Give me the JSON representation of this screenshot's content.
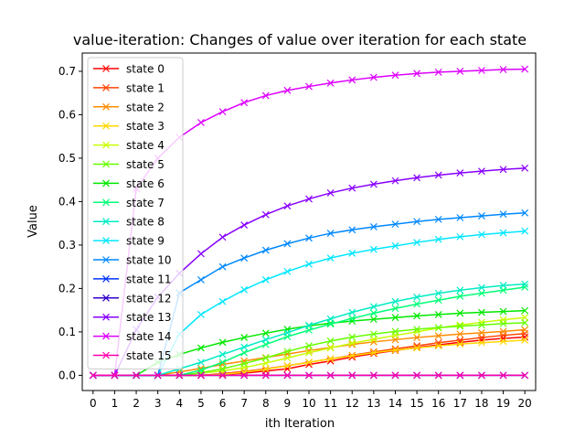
{
  "chart_data": {
    "type": "line",
    "title": "value-iteration: Changes of value over iteration for each state",
    "xlabel": "ith Iteration",
    "ylabel": "Value",
    "xlim": [
      -0.5,
      20.5
    ],
    "ylim": [
      -0.035,
      0.742
    ],
    "xticks": [
      0,
      1,
      2,
      3,
      4,
      5,
      6,
      7,
      8,
      9,
      10,
      11,
      12,
      13,
      14,
      15,
      16,
      17,
      18,
      19,
      20
    ],
    "yticks": [
      0.0,
      0.1,
      0.2,
      0.3,
      0.4,
      0.5,
      0.6,
      0.7
    ],
    "ytick_labels": [
      "0.0",
      "0.1",
      "0.2",
      "0.3",
      "0.4",
      "0.5",
      "0.6",
      "0.7"
    ],
    "grid": false,
    "legend_position": "upper-left",
    "marker": "x",
    "x": [
      0,
      1,
      2,
      3,
      4,
      5,
      6,
      7,
      8,
      9,
      10,
      11,
      12,
      13,
      14,
      15,
      16,
      17,
      18,
      19,
      20
    ],
    "series": [
      {
        "name": "state 0",
        "color": "#ff0000",
        "values": [
          0,
          0,
          0,
          0,
          0,
          0,
          0.002,
          0.005,
          0.01,
          0.015,
          0.025,
          0.033,
          0.042,
          0.05,
          0.057,
          0.064,
          0.07,
          0.076,
          0.081,
          0.085,
          0.088
        ]
      },
      {
        "name": "state 1",
        "color": "#ff4400",
        "values": [
          0,
          0,
          0,
          0,
          0,
          0,
          0.004,
          0.009,
          0.015,
          0.022,
          0.03,
          0.038,
          0.046,
          0.054,
          0.061,
          0.068,
          0.075,
          0.081,
          0.087,
          0.092,
          0.096
        ]
      },
      {
        "name": "state 2",
        "color": "#ff8c00",
        "values": [
          0,
          0,
          0,
          0,
          0.008,
          0.016,
          0.025,
          0.033,
          0.041,
          0.049,
          0.057,
          0.064,
          0.071,
          0.077,
          0.082,
          0.087,
          0.091,
          0.095,
          0.098,
          0.101,
          0.105
        ]
      },
      {
        "name": "state 3",
        "color": "#ffd800",
        "values": [
          0,
          0,
          0,
          0,
          0,
          0,
          0.002,
          0.007,
          0.014,
          0.022,
          0.03,
          0.038,
          0.045,
          0.052,
          0.058,
          0.063,
          0.068,
          0.072,
          0.075,
          0.078,
          0.081
        ]
      },
      {
        "name": "state 4",
        "color": "#c8ff00",
        "values": [
          0,
          0,
          0,
          0,
          0,
          0.005,
          0.01,
          0.018,
          0.028,
          0.04,
          0.052,
          0.063,
          0.074,
          0.083,
          0.092,
          0.1,
          0.109,
          0.116,
          0.122,
          0.128,
          0.133
        ]
      },
      {
        "name": "state 5",
        "color": "#66ff00",
        "values": [
          0,
          0,
          0,
          0,
          0,
          0.006,
          0.015,
          0.027,
          0.04,
          0.055,
          0.068,
          0.079,
          0.088,
          0.095,
          0.101,
          0.106,
          0.11,
          0.113,
          0.116,
          0.119,
          0.121
        ]
      },
      {
        "name": "state 6",
        "color": "#00e800",
        "values": [
          0,
          0,
          0,
          0.03,
          0.048,
          0.063,
          0.076,
          0.087,
          0.097,
          0.106,
          0.114,
          0.12,
          0.125,
          0.129,
          0.133,
          0.137,
          0.14,
          0.143,
          0.145,
          0.147,
          0.149
        ]
      },
      {
        "name": "state 7",
        "color": "#00ff77",
        "values": [
          0,
          0,
          0,
          0,
          0,
          0.012,
          0.03,
          0.052,
          0.071,
          0.089,
          0.104,
          0.118,
          0.131,
          0.143,
          0.154,
          0.164,
          0.173,
          0.182,
          0.189,
          0.196,
          0.203
        ]
      },
      {
        "name": "state 8",
        "color": "#00ecc4",
        "values": [
          0,
          0,
          0,
          0,
          0.015,
          0.03,
          0.048,
          0.065,
          0.082,
          0.098,
          0.115,
          0.13,
          0.145,
          0.158,
          0.17,
          0.18,
          0.189,
          0.196,
          0.202,
          0.207,
          0.21
        ]
      },
      {
        "name": "state 9",
        "color": "#00e6ff",
        "values": [
          0,
          0,
          0,
          0,
          0.095,
          0.14,
          0.17,
          0.197,
          0.22,
          0.239,
          0.256,
          0.27,
          0.281,
          0.29,
          0.298,
          0.306,
          0.313,
          0.319,
          0.324,
          0.328,
          0.332
        ]
      },
      {
        "name": "state 10",
        "color": "#0088ff",
        "values": [
          0,
          0,
          0,
          0,
          0.19,
          0.22,
          0.25,
          0.27,
          0.288,
          0.303,
          0.316,
          0.327,
          0.335,
          0.342,
          0.348,
          0.354,
          0.359,
          0.363,
          0.367,
          0.371,
          0.374
        ]
      },
      {
        "name": "state 11",
        "color": "#0033ff",
        "values": [
          0,
          0,
          0,
          0,
          0,
          0,
          0,
          0,
          0,
          0,
          0,
          0,
          0,
          0,
          0,
          0,
          0,
          0,
          0,
          0,
          0
        ]
      },
      {
        "name": "state 12",
        "color": "#3300cc",
        "values": [
          0,
          0,
          0,
          0,
          0,
          0,
          0,
          0,
          0,
          0,
          0,
          0,
          0,
          0,
          0,
          0,
          0,
          0,
          0,
          0,
          0
        ]
      },
      {
        "name": "state 13",
        "color": "#8800ff",
        "values": [
          0,
          0,
          0.105,
          0.18,
          0.235,
          0.28,
          0.318,
          0.346,
          0.37,
          0.39,
          0.406,
          0.42,
          0.431,
          0.44,
          0.448,
          0.455,
          0.461,
          0.466,
          0.47,
          0.474,
          0.477
        ]
      },
      {
        "name": "state 14",
        "color": "#dd00ff",
        "values": [
          0,
          0,
          0.43,
          0.5,
          0.548,
          0.582,
          0.607,
          0.628,
          0.644,
          0.656,
          0.665,
          0.673,
          0.68,
          0.686,
          0.691,
          0.695,
          0.698,
          0.7,
          0.702,
          0.704,
          0.705
        ]
      },
      {
        "name": "state 15",
        "color": "#ff00aa",
        "values": [
          0,
          0,
          0,
          0,
          0,
          0,
          0,
          0,
          0,
          0,
          0,
          0,
          0,
          0,
          0,
          0,
          0,
          0,
          0,
          0,
          0
        ]
      }
    ]
  }
}
